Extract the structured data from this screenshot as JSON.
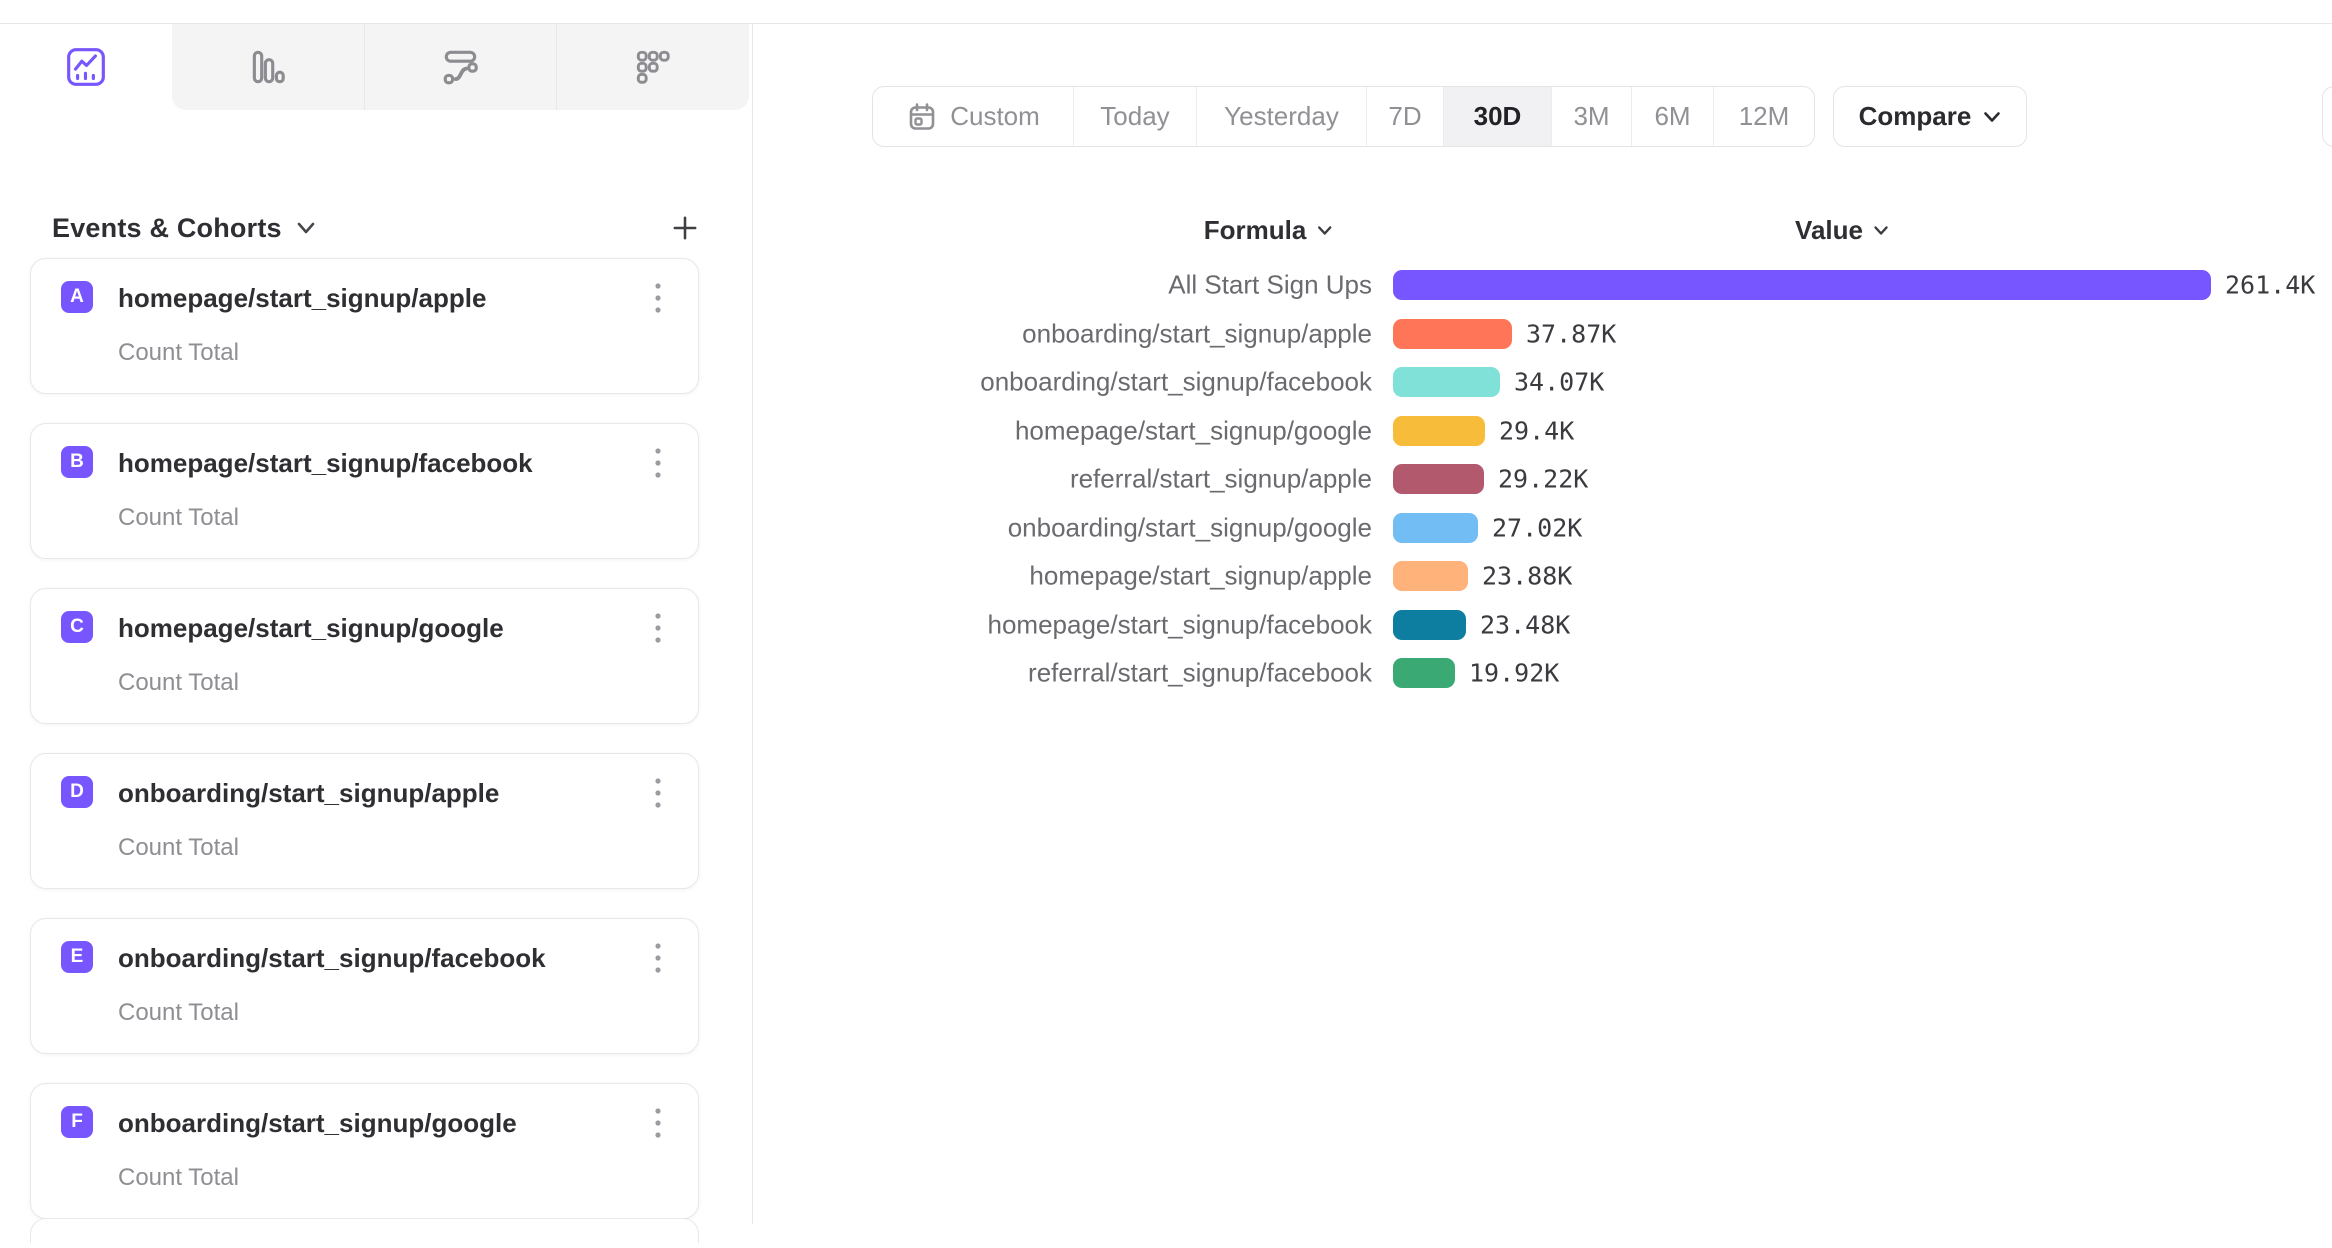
{
  "tabs": {
    "chart_types": [
      {
        "name": "insights-line",
        "icon": "line-chart-icon",
        "active": true
      },
      {
        "name": "bar-chart",
        "icon": "bar-chart-icon",
        "active": false
      },
      {
        "name": "flows",
        "icon": "flows-icon",
        "active": false
      },
      {
        "name": "retention",
        "icon": "retention-grid-icon",
        "active": false
      }
    ]
  },
  "sidebar": {
    "header": {
      "title": "Events & Cohorts"
    },
    "badge_color": "#7856FF",
    "cards": [
      {
        "letter": "A",
        "name": "homepage/start_signup/apple",
        "metric": "Count Total"
      },
      {
        "letter": "B",
        "name": "homepage/start_signup/facebook",
        "metric": "Count Total"
      },
      {
        "letter": "C",
        "name": "homepage/start_signup/google",
        "metric": "Count Total"
      },
      {
        "letter": "D",
        "name": "onboarding/start_signup/apple",
        "metric": "Count Total"
      },
      {
        "letter": "E",
        "name": "onboarding/start_signup/facebook",
        "metric": "Count Total"
      },
      {
        "letter": "F",
        "name": "onboarding/start_signup/google",
        "metric": "Count Total"
      }
    ]
  },
  "toolbar": {
    "date_ranges": [
      {
        "label": "Custom",
        "icon": "calendar-icon",
        "active": false
      },
      {
        "label": "Today",
        "active": false
      },
      {
        "label": "Yesterday",
        "active": false
      },
      {
        "label": "7D",
        "active": false
      },
      {
        "label": "30D",
        "active": true
      },
      {
        "label": "3M",
        "active": false
      },
      {
        "label": "6M",
        "active": false
      },
      {
        "label": "12M",
        "active": false
      }
    ],
    "compare_label": "Compare"
  },
  "chart_data": {
    "type": "bar",
    "orientation": "horizontal",
    "column_headers": {
      "formula": "Formula",
      "value": "Value"
    },
    "categories": [
      "All Start Sign Ups",
      "onboarding/start_signup/apple",
      "onboarding/start_signup/facebook",
      "homepage/start_signup/google",
      "referral/start_signup/apple",
      "onboarding/start_signup/google",
      "homepage/start_signup/apple",
      "homepage/start_signup/facebook",
      "referral/start_signup/facebook"
    ],
    "values": [
      261400,
      37870,
      34070,
      29400,
      29220,
      27020,
      23880,
      23480,
      19920
    ],
    "value_labels": [
      "261.4K",
      "37.87K",
      "34.07K",
      "29.4K",
      "29.22K",
      "27.02K",
      "23.88K",
      "23.48K",
      "19.92K"
    ],
    "colors": [
      "#7856FF",
      "#FF7557",
      "#80E1D9",
      "#F8BC3B",
      "#B2596E",
      "#72BEF4",
      "#FFB27A",
      "#0D7EA0",
      "#3BA974"
    ],
    "xlim": [
      0,
      261400
    ],
    "grid": false,
    "legend": false
  }
}
